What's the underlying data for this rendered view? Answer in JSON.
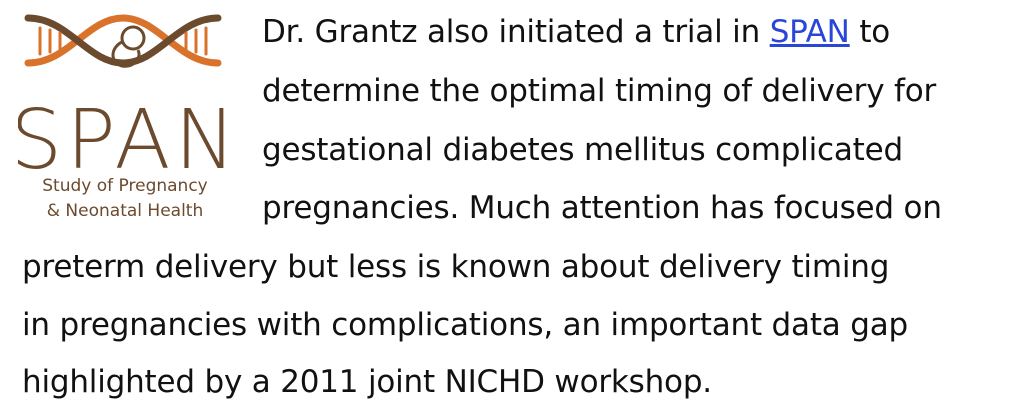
{
  "logo": {
    "name": "SPAN",
    "tagline_1": "Study of Pregnancy",
    "tagline_2": "& Neonatal Health"
  },
  "paragraph": {
    "lines": [
      [
        "Dr. Grantz also initiated a trial in ",
        "SPAN",
        " to"
      ],
      [
        "determine the optimal timing of delivery for"
      ],
      [
        "gestational diabetes mellitus complicated"
      ],
      [
        "pregnancies. Much attention has focused on"
      ],
      [
        "preterm delivery but less is known about delivery timing"
      ],
      [
        "in pregnancies with complications, an important data gap"
      ],
      [
        "highlighted by a 2011 joint NICHD workshop."
      ]
    ]
  }
}
